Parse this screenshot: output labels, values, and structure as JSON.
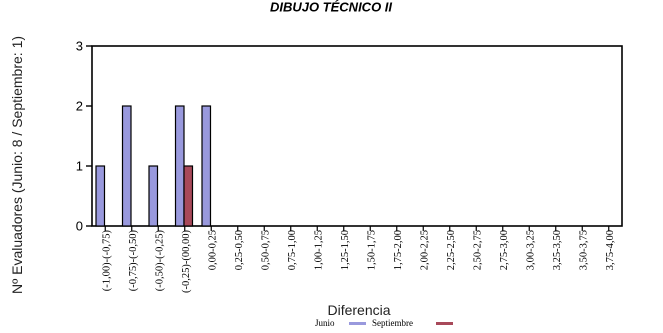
{
  "chart_data": {
    "type": "bar",
    "title": "DIBUJO TÉCNICO II",
    "xlabel": "Diferencia",
    "ylabel": "Nº Evaluadores (Junio: 8 / Septiembre: 1)",
    "ylim": [
      0,
      3
    ],
    "yticks": [
      "0",
      "1",
      "2",
      "3"
    ],
    "grid": false,
    "legend_position": "bottom-center",
    "categories": [
      "(-1,00)-(-0,75)",
      "(-0,75)-(-0,50)",
      "(-0,50)-(-0,25)",
      "(-0,25)-(00,00)",
      "0,00-0,25",
      "0,25-0,50",
      "0,50-0,75",
      "0,75-1,00",
      "1,00-1,25",
      "1,25-1,50",
      "1,50-1,75",
      "1,75-2,00",
      "2,00-2,25",
      "2,25-2,50",
      "2,50-2,75",
      "2,75-3,00",
      "3,00-3,25",
      "3,25-3,50",
      "3,50-3,75",
      "3,75-4,00"
    ],
    "series": [
      {
        "name": "Junio",
        "color": "#9999dd",
        "values": [
          1,
          2,
          1,
          2,
          2,
          0,
          0,
          0,
          0,
          0,
          0,
          0,
          0,
          0,
          0,
          0,
          0,
          0,
          0,
          0
        ]
      },
      {
        "name": "Septiembre",
        "color": "#a8495a",
        "values": [
          0,
          0,
          0,
          1,
          0,
          0,
          0,
          0,
          0,
          0,
          0,
          0,
          0,
          0,
          0,
          0,
          0,
          0,
          0,
          0
        ]
      }
    ]
  }
}
